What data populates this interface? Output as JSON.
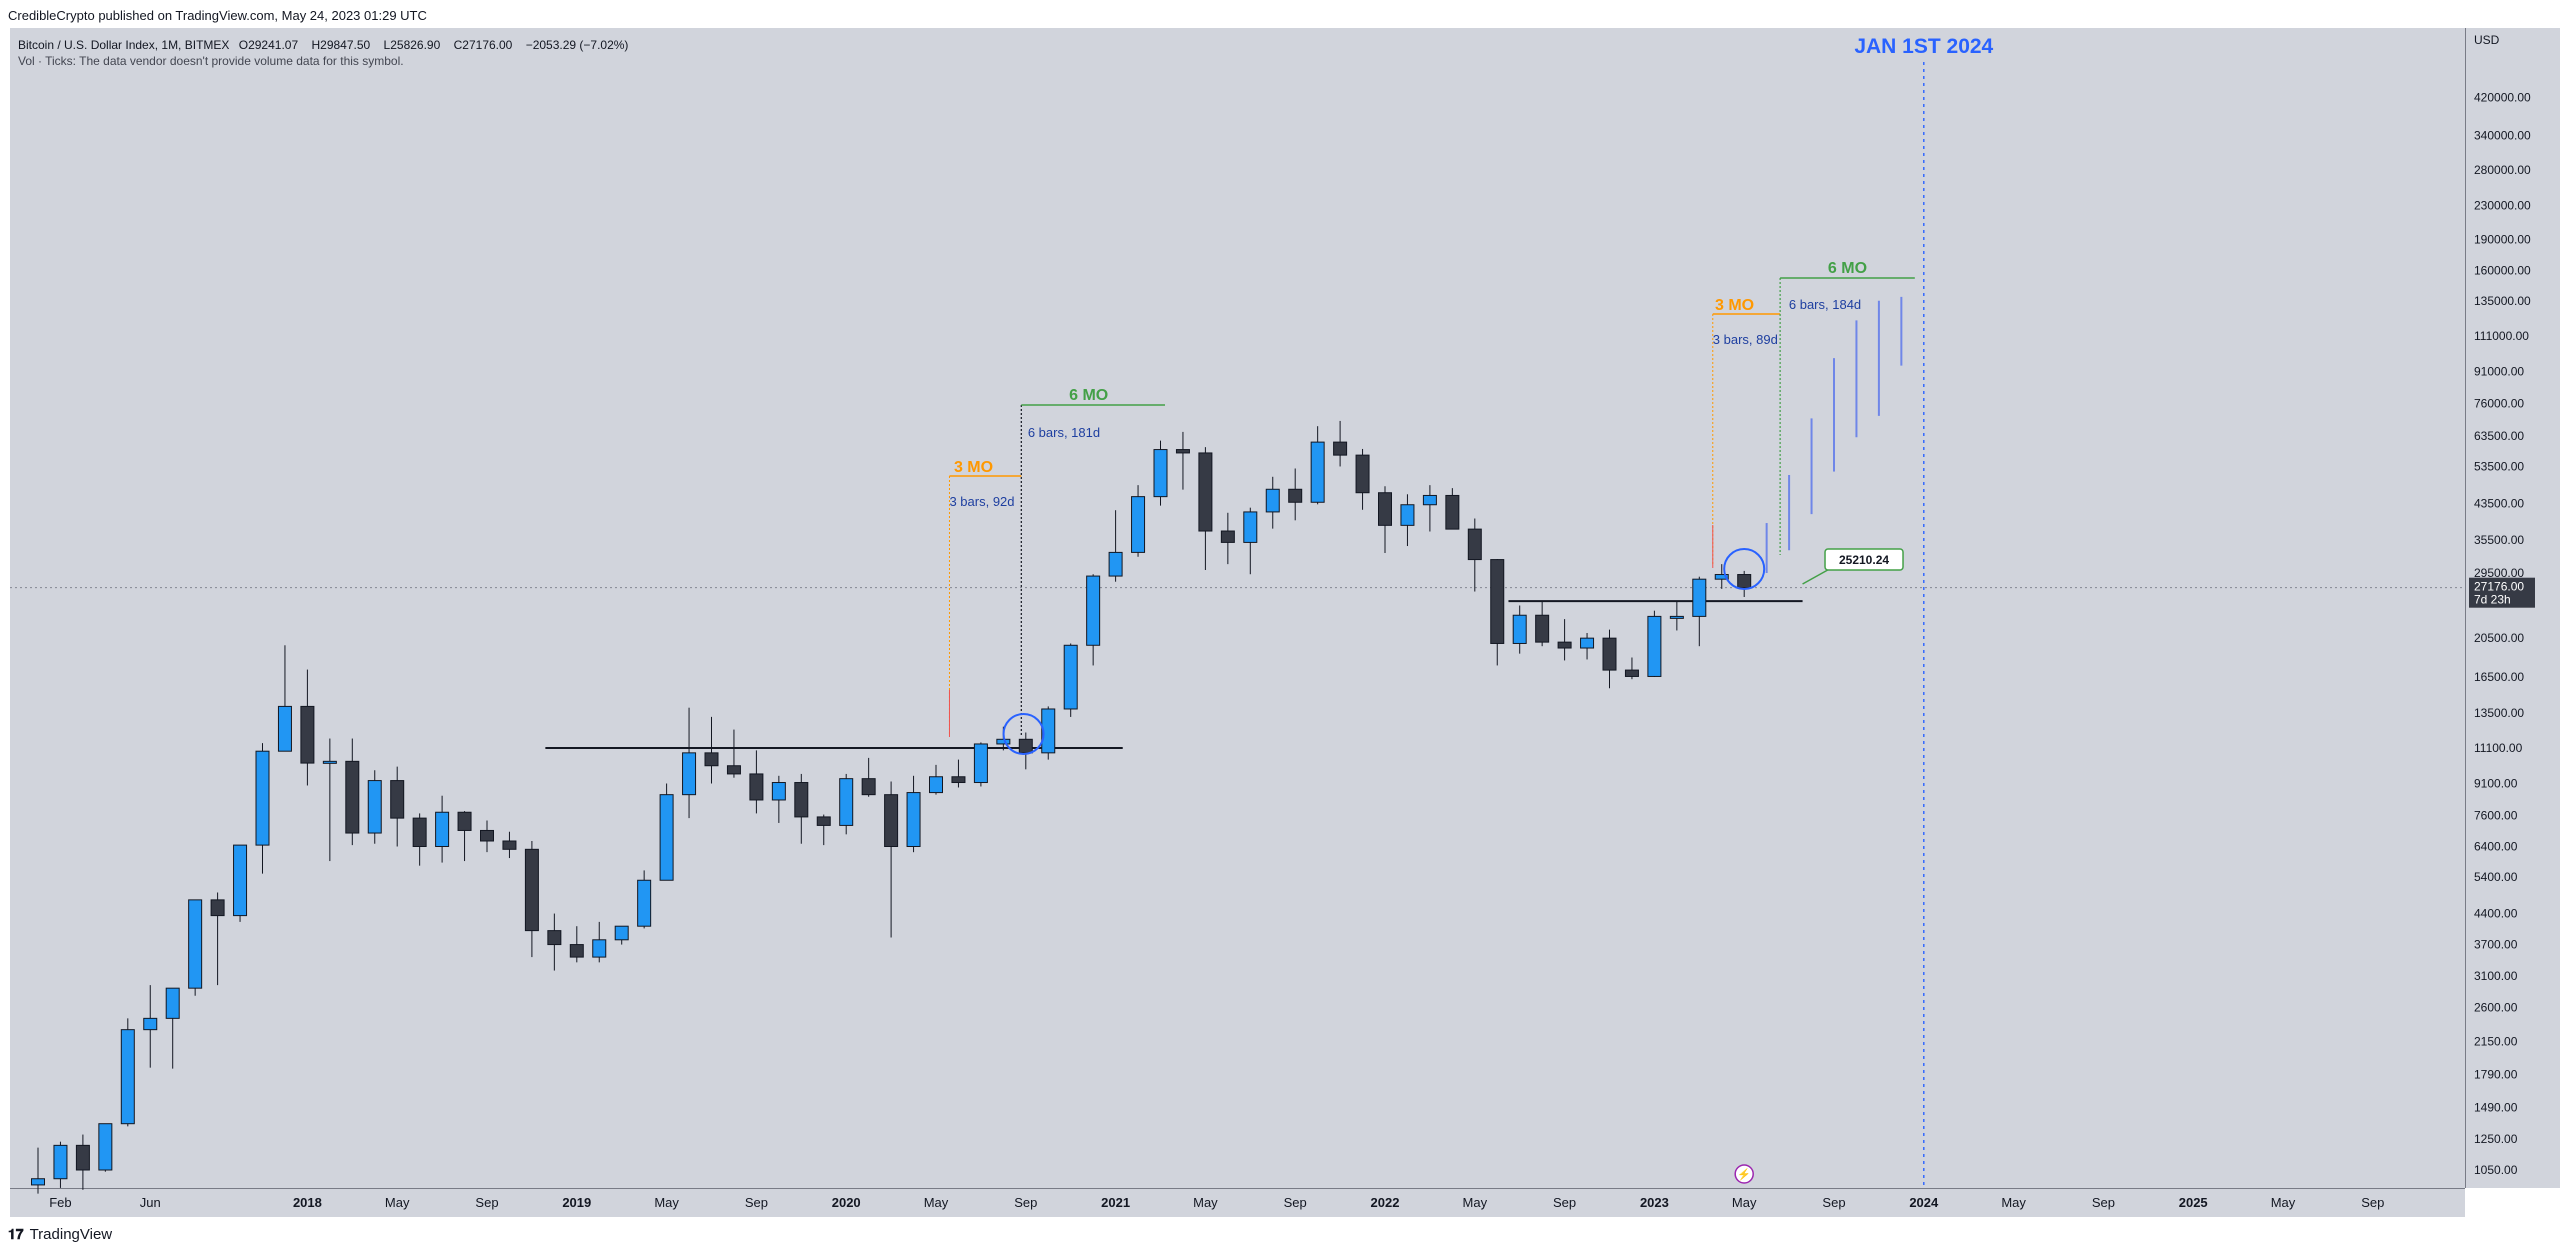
{
  "header": {
    "published": "CredibleCrypto published on TradingView.com, May 24, 2023 01:29 UTC",
    "symbol": "Bitcoin / U.S. Dollar Index, 1M, BITMEX",
    "open": "O29241.07",
    "high": "H29847.50",
    "low": "L25826.90",
    "close": "C27176.00",
    "change": "−2053.29 (−7.02%)",
    "volume_note": "Vol · Ticks: The data vendor doesn't provide volume data for this symbol."
  },
  "footer": {
    "brand": "TradingView",
    "logo": "tradingview-logo-icon"
  },
  "colors": {
    "up": "#2196f3",
    "down": "#363a45",
    "green": "#43a047",
    "orange": "#ff9800",
    "blue_text": "#2962ff",
    "bg": "#d1d4dc"
  },
  "chart_data": {
    "type": "candlestick",
    "title": "",
    "yscale": "log",
    "currency_label": "USD",
    "ylim": [
      900,
      550000
    ],
    "price_ticks": [
      "420000.00",
      "340000.00",
      "280000.00",
      "230000.00",
      "190000.00",
      "160000.00",
      "135000.00",
      "111000.00",
      "91000.00",
      "76000.00",
      "63500.00",
      "53500.00",
      "43500.00",
      "35500.00",
      "29500.00",
      "20500.00",
      "16500.00",
      "13500.00",
      "11100.00",
      "9100.00",
      "7600.00",
      "6400.00",
      "5400.00",
      "4400.00",
      "3700.00",
      "3100.00",
      "2600.00",
      "2150.00",
      "1790.00",
      "1490.00",
      "1250.00",
      "1050.00"
    ],
    "time_labels": [
      {
        "label": "Feb",
        "month": 1
      },
      {
        "label": "Jun",
        "month": 5
      },
      {
        "label": "2018",
        "month": 12,
        "bold": true
      },
      {
        "label": "May",
        "month": 16
      },
      {
        "label": "Sep",
        "month": 20
      },
      {
        "label": "2019",
        "month": 24,
        "bold": true
      },
      {
        "label": "May",
        "month": 28
      },
      {
        "label": "Sep",
        "month": 32
      },
      {
        "label": "2020",
        "month": 36,
        "bold": true
      },
      {
        "label": "May",
        "month": 40
      },
      {
        "label": "Sep",
        "month": 44
      },
      {
        "label": "2021",
        "month": 48,
        "bold": true
      },
      {
        "label": "May",
        "month": 52
      },
      {
        "label": "Sep",
        "month": 56
      },
      {
        "label": "2022",
        "month": 60,
        "bold": true
      },
      {
        "label": "May",
        "month": 64
      },
      {
        "label": "Sep",
        "month": 68
      },
      {
        "label": "2023",
        "month": 72,
        "bold": true
      },
      {
        "label": "May",
        "month": 76
      },
      {
        "label": "Sep",
        "month": 80
      },
      {
        "label": "2024",
        "month": 84,
        "bold": true
      },
      {
        "label": "May",
        "month": 88
      },
      {
        "label": "Sep",
        "month": 92
      },
      {
        "label": "2025",
        "month": 96,
        "bold": true
      },
      {
        "label": "May",
        "month": 100
      },
      {
        "label": "Sep",
        "month": 104
      }
    ],
    "candles_start": "2017-01",
    "candles": [
      [
        966,
        1190,
        920,
        1000
      ],
      [
        1000,
        1230,
        950,
        1205
      ],
      [
        1205,
        1280,
        940,
        1050
      ],
      [
        1050,
        1350,
        1040,
        1360
      ],
      [
        1360,
        2450,
        1340,
        2300
      ],
      [
        2300,
        2950,
        1860,
        2450
      ],
      [
        2450,
        2900,
        1850,
        2900
      ],
      [
        2900,
        4750,
        2780,
        4750
      ],
      [
        4750,
        4950,
        2950,
        4350
      ],
      [
        4350,
        6450,
        4200,
        6450
      ],
      [
        6450,
        11400,
        5500,
        10900
      ],
      [
        10900,
        19700,
        10900,
        14000
      ],
      [
        14000,
        17200,
        9000,
        10200
      ],
      [
        10200,
        11700,
        5900,
        10300
      ],
      [
        10300,
        11700,
        6450,
        6900
      ],
      [
        6900,
        9800,
        6500,
        9250
      ],
      [
        9250,
        10000,
        6400,
        7500
      ],
      [
        7500,
        7700,
        5750,
        6400
      ],
      [
        6400,
        8500,
        5850,
        7750
      ],
      [
        7750,
        7800,
        5900,
        7000
      ],
      [
        7000,
        7400,
        6200,
        6600
      ],
      [
        6600,
        6950,
        6000,
        6300
      ],
      [
        6300,
        6600,
        3450,
        4000
      ],
      [
        4000,
        4400,
        3200,
        3700
      ],
      [
        3700,
        4100,
        3350,
        3450
      ],
      [
        3450,
        4200,
        3350,
        3800
      ],
      [
        3800,
        4100,
        3700,
        4100
      ],
      [
        4100,
        5600,
        4050,
        5300
      ],
      [
        5300,
        9100,
        5300,
        8550
      ],
      [
        8550,
        13900,
        7500,
        10800
      ],
      [
        10800,
        13200,
        9100,
        10050
      ],
      [
        10050,
        12300,
        9400,
        9600
      ],
      [
        9600,
        10950,
        7700,
        8300
      ],
      [
        8300,
        9500,
        7300,
        9150
      ],
      [
        9150,
        9600,
        6500,
        7550
      ],
      [
        7550,
        7650,
        6450,
        7200
      ],
      [
        7200,
        9600,
        6850,
        9350
      ],
      [
        9350,
        10500,
        8450,
        8550
      ],
      [
        8550,
        9200,
        3850,
        6400
      ],
      [
        6400,
        9500,
        6200,
        8650
      ],
      [
        8650,
        10100,
        8550,
        9450
      ],
      [
        9450,
        10400,
        8900,
        9150
      ],
      [
        9150,
        11450,
        8950,
        11350
      ],
      [
        11350,
        12500,
        10950,
        11650
      ],
      [
        11650,
        12100,
        9850,
        10800
      ],
      [
        10800,
        14000,
        10400,
        13800
      ],
      [
        13800,
        19900,
        13200,
        19700
      ],
      [
        19700,
        29300,
        17600,
        29000
      ],
      [
        29000,
        41900,
        28100,
        33100
      ],
      [
        33100,
        48200,
        32300,
        45200
      ],
      [
        45200,
        61800,
        43000,
        58800
      ],
      [
        58800,
        64900,
        47000,
        57700
      ],
      [
        57700,
        59600,
        30000,
        37300
      ],
      [
        37300,
        41300,
        31000,
        35000
      ],
      [
        35000,
        42500,
        29300,
        41500
      ],
      [
        41500,
        50500,
        37800,
        47100
      ],
      [
        47100,
        52900,
        39600,
        43800
      ],
      [
        43800,
        67000,
        43300,
        61300
      ],
      [
        61300,
        69000,
        53500,
        57000
      ],
      [
        57000,
        59000,
        42000,
        46200
      ],
      [
        46200,
        47900,
        33000,
        38500
      ],
      [
        38500,
        45800,
        34300,
        43200
      ],
      [
        43200,
        48200,
        37200,
        45500
      ],
      [
        45500,
        47400,
        37700,
        37700
      ],
      [
        37700,
        40000,
        26600,
        31800
      ],
      [
        31800,
        31900,
        17600,
        19900
      ],
      [
        19900,
        24600,
        18800,
        23300
      ],
      [
        23300,
        25200,
        19600,
        20050
      ],
      [
        20050,
        22800,
        18100,
        19400
      ],
      [
        19400,
        21100,
        18200,
        20500
      ],
      [
        20500,
        21500,
        15500,
        17150
      ],
      [
        17150,
        18400,
        16300,
        16550
      ],
      [
        16550,
        23900,
        16500,
        23150
      ],
      [
        23150,
        25200,
        21400,
        23150
      ],
      [
        23150,
        28900,
        19600,
        28500
      ],
      [
        28500,
        31000,
        27000,
        29250
      ],
      [
        29250,
        29850,
        25800,
        27176
      ]
    ],
    "current_price": {
      "value": 27176.0,
      "label": "27176.00",
      "countdown": "7d 23h"
    },
    "annotations": {
      "jan_label": "JAN 1ST 2024",
      "mo3_label": "3 MO",
      "mo6_label": "6 MO",
      "bars_2020_3mo": "3 bars, 92d",
      "bars_2020_6mo": "6 bars, 181d",
      "bars_2023_3mo": "3 bars, 89d",
      "bars_2023_6mo": "6 bars, 184d",
      "callout_value": "25210.24",
      "support_2020": 11100,
      "support_2023": 25210.24,
      "projection_bars": [
        {
          "month": 77,
          "low": 29500,
          "high": 39000
        },
        {
          "month": 78,
          "low": 33500,
          "high": 51000
        },
        {
          "month": 79,
          "low": 41000,
          "high": 70000
        },
        {
          "month": 80,
          "low": 52000,
          "high": 98000
        },
        {
          "month": 81,
          "low": 63000,
          "high": 121000
        },
        {
          "month": 82,
          "low": 71000,
          "high": 135000
        },
        {
          "month": 83,
          "low": 94000,
          "high": 138000
        }
      ]
    }
  }
}
